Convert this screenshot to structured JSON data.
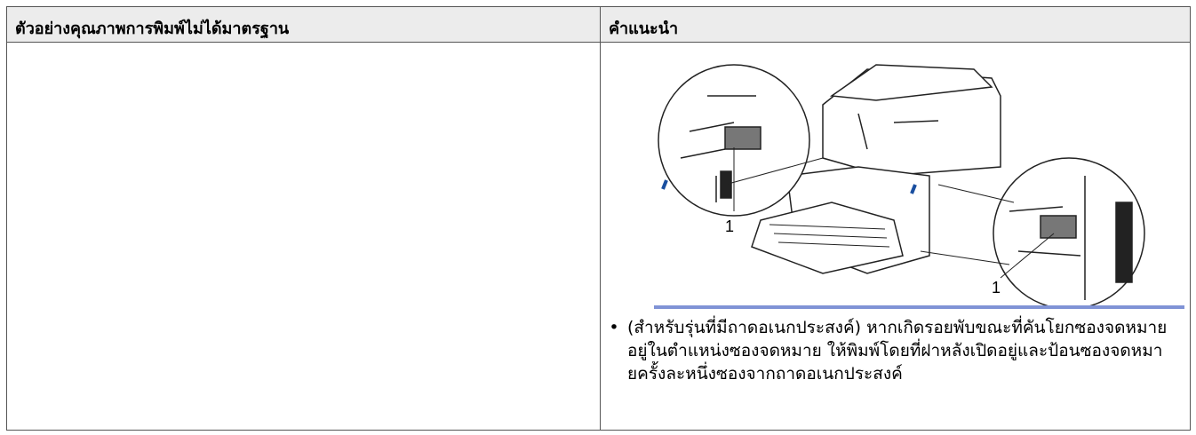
{
  "table": {
    "header": [
      "ตัวอย่างคุณภาพการพิมพ์ไม่ได้มาตรฐาน",
      "คำแนะนำ"
    ],
    "rows": [
      {
        "figure_callouts": [
          "1",
          "1"
        ],
        "bullets": [
          "(สำหรับรุ่นที่มีถาดอเนกประสงค์) หากเกิดรอยพับขณะที่คันโยกซองจดหมายอยู่ในตำแหน่งซองจดหมาย ให้พิมพ์โดยที่ฝาหลังเปิดอยู่และป้อนซองจดหมายครั้งละหนึ่งซองจากถาดอเนกประสงค์"
        ]
      }
    ]
  }
}
